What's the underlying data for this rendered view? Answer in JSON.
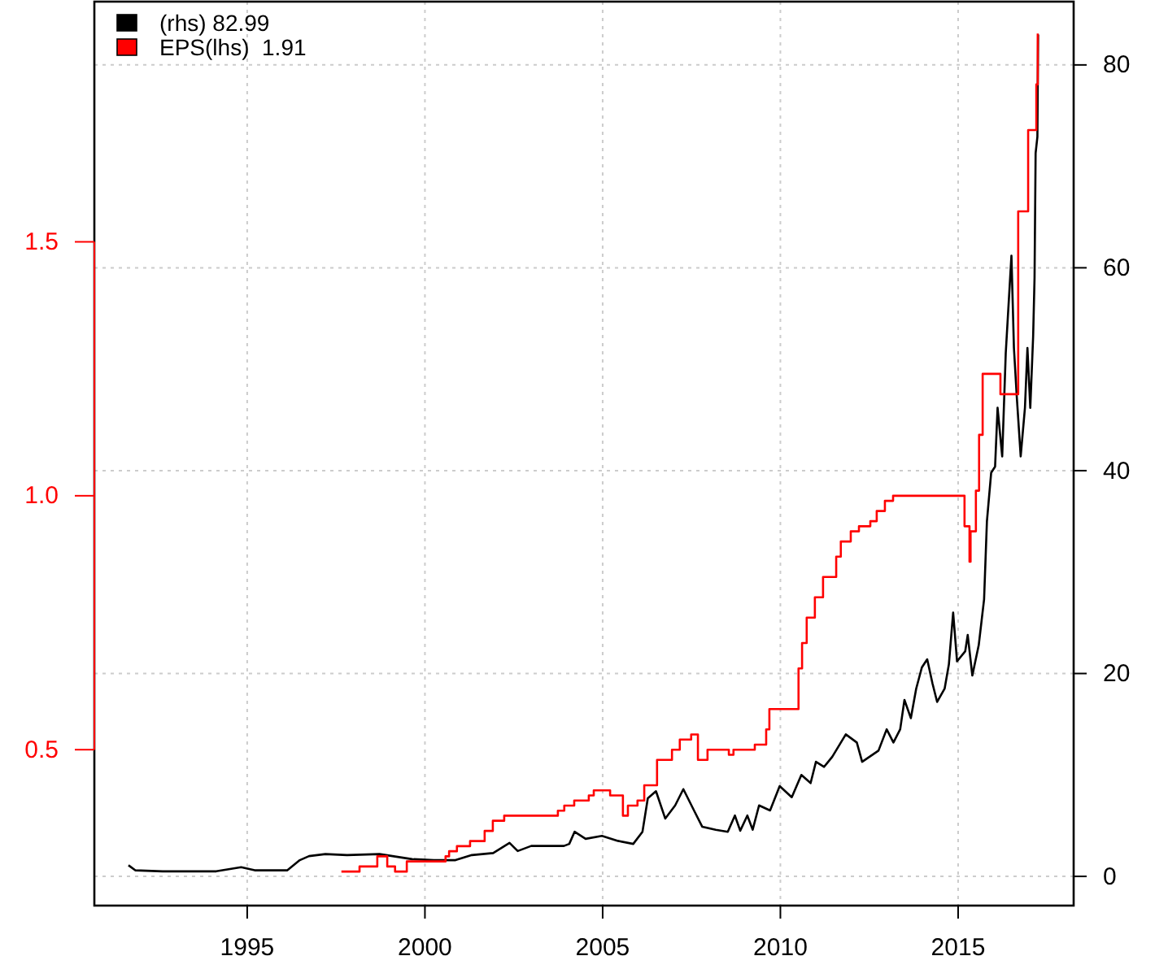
{
  "chart_data": {
    "type": "line",
    "xlim": [
      1990.7,
      2018.25
    ],
    "xticks": [
      1995,
      2000,
      2005,
      2010,
      2015
    ],
    "ylim": [
      0.193,
      1.973
    ],
    "yticks": [
      0.5,
      {
        "value": 1,
        "label": "1.0"
      },
      1.5
    ],
    "y2lim": [
      -2.88,
      86.24
    ],
    "y2ticks": [
      0,
      20,
      40,
      60,
      80
    ],
    "grid": true,
    "legend": "top left",
    "series": [
      {
        "name": "(rhs) 82.99",
        "axis": "y2",
        "color": "#000000",
        "x": [
          1991.66,
          1991.85,
          1992.62,
          1994.13,
          1994.83,
          1995.21,
          1996.13,
          1996.48,
          1996.74,
          1997.2,
          1997.81,
          1998.72,
          1999.64,
          2000.25,
          2000.86,
          2001.32,
          2001.92,
          2002.38,
          2002.61,
          2002.99,
          2003.91,
          2004.06,
          2004.21,
          2004.52,
          2004.98,
          2005.43,
          2005.86,
          2006.12,
          2006.27,
          2006.5,
          2006.76,
          2007.04,
          2007.27,
          2007.57,
          2007.8,
          2008.18,
          2008.52,
          2008.72,
          2008.87,
          2009.07,
          2009.22,
          2009.4,
          2009.71,
          2009.98,
          2010.32,
          2010.59,
          2010.85,
          2011.0,
          2011.23,
          2011.46,
          2011.84,
          2012.15,
          2012.3,
          2012.76,
          2012.99,
          2013.18,
          2013.37,
          2013.49,
          2013.67,
          2013.82,
          2013.98,
          2014.13,
          2014.28,
          2014.41,
          2014.62,
          2014.74,
          2014.86,
          2014.97,
          2015.2,
          2015.27,
          2015.4,
          2015.58,
          2015.73,
          2015.81,
          2015.93,
          2016.04,
          2016.11,
          2016.24,
          2016.34,
          2016.5,
          2016.57,
          2016.65,
          2016.76,
          2016.88,
          2016.95,
          2017.03,
          2017.11,
          2017.15,
          2017.18,
          2017.23,
          2017.25
        ],
        "values": [
          1.1,
          0.6,
          0.5,
          0.5,
          0.9,
          0.6,
          0.6,
          1.6,
          2.0,
          2.2,
          2.1,
          2.2,
          1.7,
          1.6,
          1.6,
          2.1,
          2.3,
          3.3,
          2.5,
          3.0,
          3.0,
          3.2,
          4.4,
          3.7,
          4.0,
          3.5,
          3.2,
          4.4,
          7.7,
          8.4,
          5.7,
          7.0,
          8.6,
          6.5,
          4.9,
          4.6,
          4.4,
          6.0,
          4.5,
          6.0,
          4.6,
          7.0,
          6.5,
          8.9,
          7.8,
          10.0,
          9.2,
          11.3,
          10.8,
          11.8,
          14.0,
          13.2,
          11.3,
          12.4,
          14.5,
          13.2,
          14.5,
          17.4,
          15.6,
          18.5,
          20.6,
          21.4,
          19.0,
          17.2,
          18.5,
          20.9,
          26.0,
          21.2,
          22.2,
          23.8,
          19.8,
          22.8,
          27.3,
          35.0,
          39.8,
          40.4,
          46.2,
          41.4,
          51.6,
          61.2,
          52.1,
          47.3,
          41.4,
          46.2,
          52.1,
          46.2,
          53.2,
          59.0,
          71.3,
          72.9,
          83.0
        ]
      },
      {
        "name": "EPS(lhs)  1.91",
        "type": "step",
        "color": "#ff0000",
        "x": [
          1997.65,
          1998.16,
          1998.66,
          1998.94,
          1999.16,
          1999.49,
          2000.58,
          2000.68,
          2000.9,
          2001.27,
          2001.68,
          2001.91,
          2002.23,
          2003.74,
          2003.92,
          2004.2,
          2004.61,
          2004.75,
          2005.21,
          2005.57,
          2005.71,
          2005.98,
          2006.17,
          2006.53,
          2006.95,
          2007.17,
          2007.49,
          2007.68,
          2007.95,
          2008.55,
          2008.68,
          2009.28,
          2009.6,
          2009.69,
          2010.51,
          2010.61,
          2010.74,
          2010.97,
          2011.2,
          2011.57,
          2011.7,
          2011.98,
          2012.21,
          2012.53,
          2012.71,
          2012.94,
          2013.17,
          2015.18,
          2015.32,
          2015.35,
          2015.5,
          2015.59,
          2015.69,
          2016.19,
          2016.69,
          2016.97,
          2017.2,
          2017.24
        ],
        "values": [
          0.26,
          0.27,
          0.29,
          0.27,
          0.26,
          0.28,
          0.29,
          0.3,
          0.31,
          0.32,
          0.34,
          0.36,
          0.37,
          0.38,
          0.39,
          0.4,
          0.41,
          0.42,
          0.41,
          0.37,
          0.39,
          0.4,
          0.43,
          0.48,
          0.5,
          0.52,
          0.53,
          0.48,
          0.5,
          0.49,
          0.5,
          0.51,
          0.54,
          0.58,
          0.66,
          0.71,
          0.76,
          0.8,
          0.84,
          0.88,
          0.91,
          0.93,
          0.94,
          0.95,
          0.97,
          0.99,
          1.0,
          0.94,
          0.87,
          0.93,
          1.01,
          1.12,
          1.24,
          1.2,
          1.56,
          1.72,
          1.81,
          1.91
        ]
      }
    ]
  }
}
